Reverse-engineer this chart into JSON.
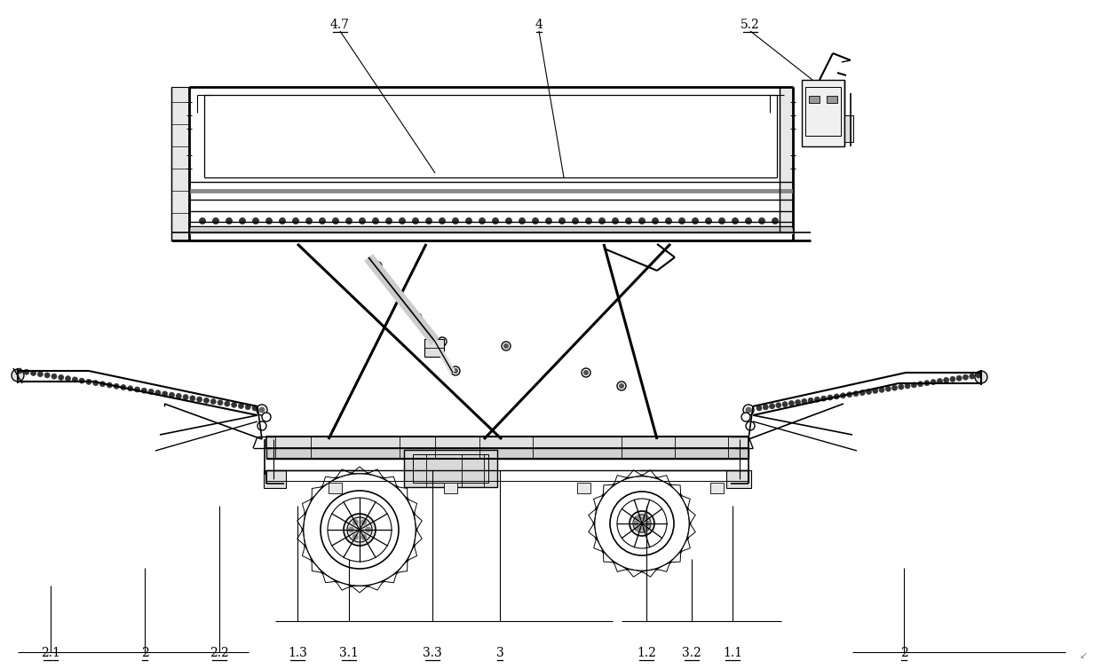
{
  "bg": "#ffffff",
  "lc": "#000000",
  "gray": "#aaaaaa",
  "figsize": [
    12.4,
    7.54
  ],
  "dpi": 100,
  "bottom_labels": [
    [
      "2.1",
      57,
      736
    ],
    [
      "2",
      163,
      736
    ],
    [
      "2.2",
      247,
      736
    ],
    [
      "1.3",
      335,
      736
    ],
    [
      "3.1",
      393,
      736
    ],
    [
      "3.3",
      487,
      736
    ],
    [
      "3",
      563,
      736
    ],
    [
      "1.2",
      728,
      736
    ],
    [
      "3.2",
      779,
      736
    ],
    [
      "1.1",
      825,
      736
    ],
    [
      "2",
      1018,
      736
    ]
  ],
  "top_labels": [
    [
      "4.7",
      383,
      28
    ],
    [
      "4",
      607,
      28
    ],
    [
      "5.2",
      845,
      28
    ]
  ]
}
